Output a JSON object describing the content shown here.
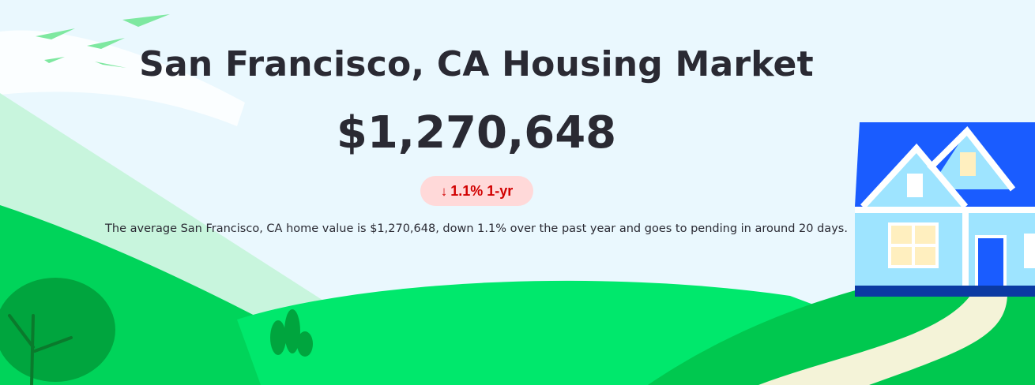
{
  "hero": {
    "title": "San Francisco, CA Housing Market",
    "price": "$1,270,648",
    "change": {
      "direction_icon": "down-arrow-icon",
      "label": "1.1% 1-yr",
      "color": "#d10000",
      "background": "#ffd9d9"
    },
    "description": "The average San Francisco, CA home value is $1,270,648, down 1.1% over the past year and goes to pending in around 20 days."
  },
  "colors": {
    "sky": "#eaf8fe",
    "text": "#2a2a33",
    "hill_light": "#00e86c",
    "hill_dark": "#00c84f",
    "house_roof": "#1a5cff",
    "house_wall": "#9ee4ff"
  }
}
